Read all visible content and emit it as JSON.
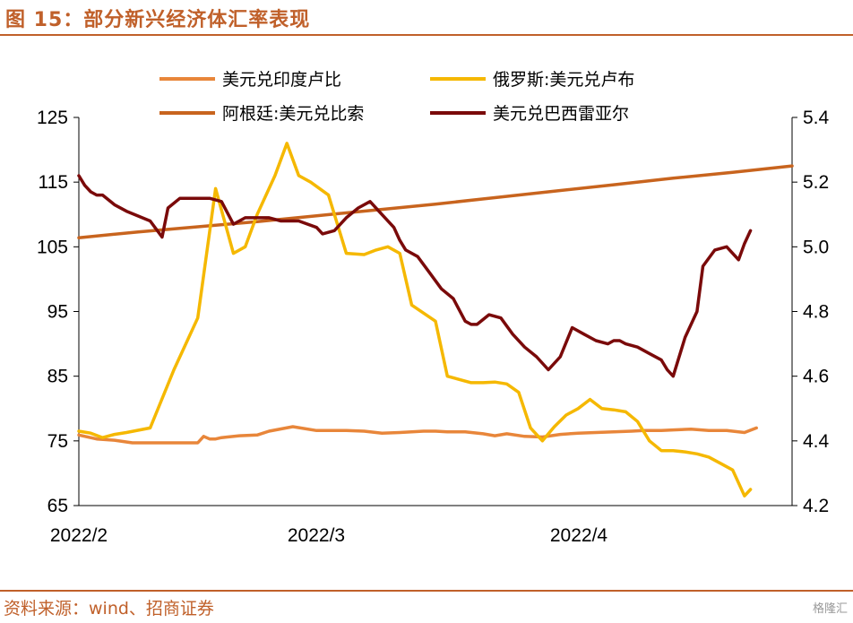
{
  "header": {
    "title": "图 15：部分新兴经济体汇率表现"
  },
  "footer": {
    "source": "资料来源：wind、招商证券",
    "watermark": "格隆汇"
  },
  "chart_data": {
    "type": "line",
    "left_axis": {
      "ticks": [
        125,
        115,
        105,
        95,
        85,
        75,
        65
      ],
      "range": [
        65,
        125
      ]
    },
    "right_axis": {
      "ticks": [
        "5.4",
        "5.2",
        "5.0",
        "4.8",
        "4.6",
        "4.4",
        "4.2"
      ],
      "range": [
        4.2,
        5.4
      ]
    },
    "x_ticks": [
      "2022/2",
      "2022/3",
      "2022/4"
    ],
    "legend": [
      {
        "name": "美元兑印度卢比",
        "color": "#e8863a"
      },
      {
        "name": "俄罗斯:美元兑卢布",
        "color": "#f5b800"
      },
      {
        "name": "阿根廷:美元兑比索",
        "color": "#c8641e"
      },
      {
        "name": "美元兑巴西雷亚尔",
        "color": "#7a0a0a"
      }
    ],
    "series": [
      {
        "name": "美元兑印度卢比",
        "axis": "left",
        "color": "#e8863a",
        "x": [
          0,
          3,
          6,
          9,
          12,
          15,
          18,
          20,
          21,
          22,
          23,
          24,
          27,
          30,
          32,
          36,
          40,
          42,
          45,
          48,
          51,
          54,
          58,
          60,
          62,
          65,
          68,
          70,
          72,
          75,
          78,
          81,
          84,
          87,
          90,
          93,
          95,
          98,
          100,
          103,
          106,
          109,
          112,
          114
        ],
        "values": [
          75.9,
          75.3,
          75.1,
          74.7,
          74.7,
          74.7,
          74.7,
          74.7,
          75.7,
          75.3,
          75.3,
          75.5,
          75.8,
          75.9,
          76.5,
          77.2,
          76.6,
          76.6,
          76.6,
          76.5,
          76.2,
          76.3,
          76.5,
          76.5,
          76.4,
          76.4,
          76.1,
          75.8,
          76.1,
          75.7,
          75.6,
          76.0,
          76.2,
          76.3,
          76.4,
          76.5,
          76.6,
          76.6,
          76.7,
          76.8,
          76.6,
          76.6,
          76.3,
          77.0
        ]
      },
      {
        "name": "俄罗斯:美元兑卢布",
        "axis": "left",
        "color": "#f5b800",
        "x": [
          0,
          2,
          4,
          6,
          8,
          12,
          16,
          20,
          23,
          26,
          28,
          30,
          33,
          35,
          37,
          39,
          42,
          45,
          48,
          50,
          52,
          54,
          56,
          60,
          62,
          64,
          66,
          68,
          70,
          72,
          74,
          76,
          78,
          80,
          82,
          84,
          86,
          88,
          90,
          92,
          94,
          96,
          98,
          100,
          102,
          104,
          106,
          108,
          110,
          112,
          113
        ],
        "values": [
          76.5,
          76.2,
          75.5,
          76.0,
          76.3,
          77.0,
          86.0,
          94.0,
          114.0,
          104.0,
          105.0,
          110.0,
          116.0,
          121.0,
          116.0,
          115.0,
          113.0,
          104.0,
          103.8,
          104.5,
          105.0,
          104.0,
          96.0,
          93.5,
          85.0,
          84.5,
          84.0,
          84.0,
          84.1,
          83.8,
          82.5,
          77.0,
          75.0,
          77.2,
          79.0,
          80.0,
          81.4,
          80.0,
          79.8,
          79.5,
          78.0,
          75.0,
          73.5,
          73.5,
          73.3,
          73.0,
          72.5,
          71.5,
          70.5,
          66.5,
          67.5
        ]
      },
      {
        "name": "阿根廷:美元兑比索",
        "axis": "left",
        "color": "#c8641e",
        "x": [
          0,
          10,
          20,
          30,
          40,
          50,
          60,
          70,
          80,
          90,
          100,
          110,
          120
        ],
        "values": [
          106.4,
          107.3,
          108.1,
          108.9,
          109.8,
          110.7,
          111.6,
          112.6,
          113.6,
          114.6,
          115.6,
          116.5,
          117.5
        ]
      },
      {
        "name": "美元兑巴西雷亚尔",
        "axis": "right",
        "color": "#7a0a0a",
        "x": [
          0,
          1,
          2,
          3,
          4,
          6,
          8,
          12,
          14,
          15,
          17,
          19,
          21,
          22,
          24,
          26,
          28,
          30,
          32,
          34,
          37,
          40,
          41,
          43,
          44,
          45,
          47,
          49,
          51,
          53,
          54,
          55,
          57,
          59,
          61,
          63,
          65,
          66,
          67,
          69,
          71,
          73,
          75,
          77,
          79,
          81,
          83,
          85,
          87,
          89,
          90,
          91,
          92,
          94,
          96,
          98,
          99,
          100,
          102,
          104,
          105,
          107,
          109,
          111,
          112,
          113
        ],
        "values": [
          5.22,
          5.19,
          5.17,
          5.16,
          5.16,
          5.13,
          5.11,
          5.08,
          5.03,
          5.12,
          5.15,
          5.15,
          5.15,
          5.15,
          5.14,
          5.07,
          5.09,
          5.09,
          5.09,
          5.08,
          5.08,
          5.06,
          5.04,
          5.05,
          5.07,
          5.09,
          5.12,
          5.14,
          5.1,
          5.06,
          5.02,
          4.99,
          4.97,
          4.92,
          4.87,
          4.84,
          4.77,
          4.76,
          4.76,
          4.79,
          4.78,
          4.73,
          4.69,
          4.66,
          4.62,
          4.66,
          4.75,
          4.73,
          4.71,
          4.7,
          4.71,
          4.71,
          4.7,
          4.69,
          4.67,
          4.65,
          4.62,
          4.6,
          4.72,
          4.8,
          4.94,
          4.99,
          5.0,
          4.96,
          5.01,
          5.05
        ]
      }
    ]
  }
}
